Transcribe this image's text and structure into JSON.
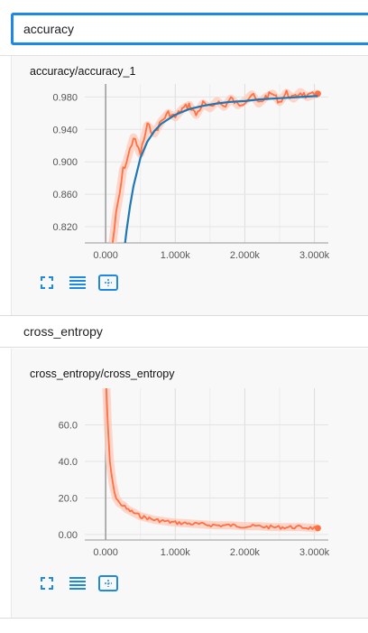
{
  "sections": [
    {
      "name": "accuracy"
    },
    {
      "name": "cross_entropy"
    }
  ],
  "colors": {
    "raw": "#ff7043",
    "raw_light": "#ffccbc",
    "smooth": "#1f77b4",
    "accent": "#1e88e5",
    "icon": "#1e88e5"
  },
  "icons": [
    "expand-icon",
    "list-icon",
    "fit-domain-icon"
  ],
  "chart_data": [
    {
      "type": "line",
      "title": "accuracy/accuracy_1",
      "xlabel": "",
      "ylabel": "",
      "xlim": [
        -300,
        3200
      ],
      "ylim": [
        0.8,
        0.996
      ],
      "xticks": [
        0,
        1000,
        2000,
        3000
      ],
      "xtick_labels": [
        "0.000",
        "1.000k",
        "2.000k",
        "3.000k"
      ],
      "yticks": [
        0.82,
        0.86,
        0.9,
        0.94,
        0.98
      ],
      "ytick_labels": [
        "0.820",
        "0.860",
        "0.900",
        "0.940",
        "0.980"
      ],
      "grid": true,
      "series": [
        {
          "style": "raw",
          "x": [
            100,
            150,
            200,
            250,
            300,
            400,
            500,
            600,
            700,
            800,
            900,
            1000,
            1100,
            1200,
            1300,
            1400,
            1500,
            1600,
            1700,
            1800,
            1900,
            2000,
            2100,
            2200,
            2300,
            2400,
            2500,
            2600,
            2700,
            2800,
            2900,
            3000,
            3050
          ],
          "y": [
            0.8,
            0.835,
            0.86,
            0.89,
            0.9,
            0.93,
            0.91,
            0.945,
            0.935,
            0.95,
            0.96,
            0.955,
            0.965,
            0.97,
            0.958,
            0.972,
            0.966,
            0.975,
            0.968,
            0.978,
            0.97,
            0.975,
            0.983,
            0.972,
            0.98,
            0.984,
            0.974,
            0.985,
            0.978,
            0.986,
            0.98,
            0.983,
            0.984
          ]
        },
        {
          "style": "smooth",
          "x": [
            280,
            300,
            350,
            400,
            500,
            600,
            700,
            800,
            1000,
            1200,
            1400,
            1600,
            1800,
            2000,
            2200,
            2400,
            2600,
            2800,
            3000,
            3050
          ],
          "y": [
            0.8,
            0.815,
            0.845,
            0.87,
            0.905,
            0.925,
            0.938,
            0.947,
            0.958,
            0.965,
            0.969,
            0.972,
            0.974,
            0.975,
            0.977,
            0.978,
            0.979,
            0.98,
            0.981,
            0.981
          ]
        }
      ]
    },
    {
      "type": "line",
      "title": "cross_entropy/cross_entropy",
      "xlabel": "",
      "ylabel": "",
      "xlim": [
        -300,
        3200
      ],
      "ylim": [
        -3,
        80
      ],
      "xticks": [
        0,
        1000,
        2000,
        3000
      ],
      "xtick_labels": [
        "0.000",
        "1.000k",
        "2.000k",
        "3.000k"
      ],
      "yticks": [
        0,
        20,
        40,
        60
      ],
      "ytick_labels": [
        "0.00",
        "20.0",
        "40.0",
        "60.0"
      ],
      "grid": true,
      "series": [
        {
          "style": "raw",
          "x": [
            10,
            30,
            60,
            100,
            150,
            200,
            250,
            300,
            400,
            500,
            600,
            700,
            800,
            900,
            1000,
            1200,
            1400,
            1600,
            1800,
            2000,
            2200,
            2400,
            2600,
            2800,
            3000,
            3050
          ],
          "y": [
            80,
            60,
            40,
            28,
            20,
            17,
            16,
            14,
            12,
            10,
            9,
            8,
            7.5,
            7,
            6.5,
            6,
            5.5,
            5,
            5,
            4.5,
            4.5,
            4,
            4,
            4,
            3.5,
            3.5
          ]
        }
      ]
    }
  ]
}
